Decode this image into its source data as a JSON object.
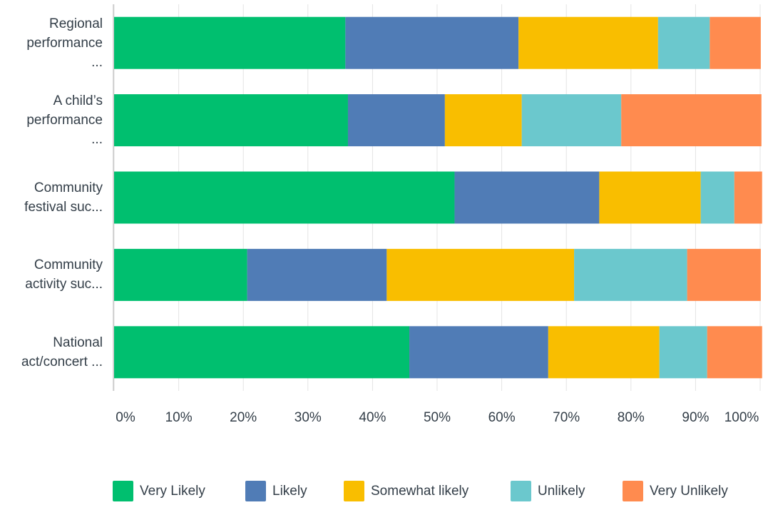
{
  "chart_data": {
    "type": "bar",
    "orientation": "horizontal",
    "stacked": true,
    "categories": [
      [
        "Regional",
        "performance",
        "..."
      ],
      [
        "A child’s",
        "performance",
        "..."
      ],
      [
        "Community",
        "festival suc..."
      ],
      [
        "Community",
        "activity suc..."
      ],
      [
        "National",
        "act/concert ..."
      ]
    ],
    "series": [
      {
        "name": "Very Likely",
        "color": "#00bf6f",
        "values": [
          35.8,
          36.2,
          52.7,
          20.6,
          45.7
        ]
      },
      {
        "name": "Likely",
        "color": "#507cb6",
        "values": [
          26.8,
          15.0,
          22.4,
          21.6,
          21.5
        ]
      },
      {
        "name": "Somewhat likely",
        "color": "#f9be00",
        "values": [
          21.6,
          11.9,
          15.7,
          29.0,
          17.2
        ]
      },
      {
        "name": "Unlikely",
        "color": "#6bc8cd",
        "values": [
          8.0,
          15.4,
          5.2,
          17.5,
          7.4
        ]
      },
      {
        "name": "Very Unlikely",
        "color": "#ff8b4f",
        "values": [
          7.9,
          21.7,
          4.3,
          11.4,
          8.5
        ]
      }
    ],
    "xlim": [
      0,
      100
    ],
    "x_ticks": [
      "0%",
      "10%",
      "20%",
      "30%",
      "40%",
      "50%",
      "60%",
      "70%",
      "80%",
      "90%",
      "100%"
    ],
    "grid": true,
    "legend_position": "bottom"
  }
}
